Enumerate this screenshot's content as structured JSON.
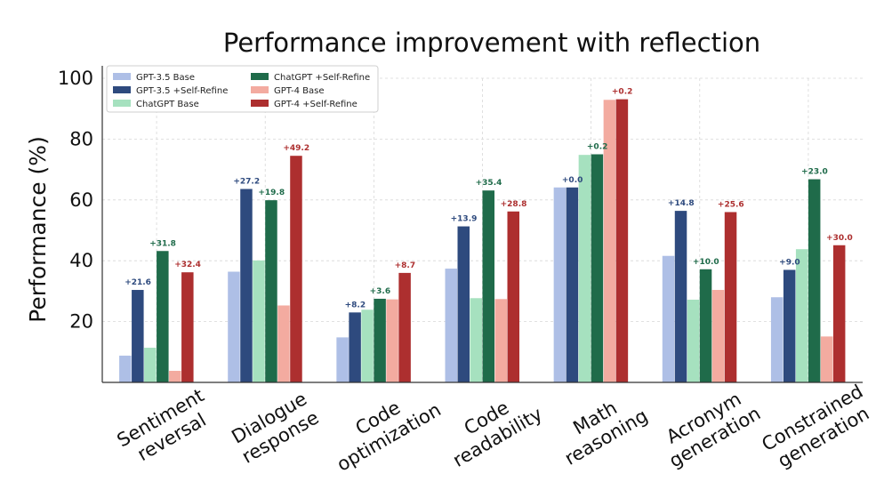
{
  "chart_data": {
    "type": "bar",
    "title": "Performance improvement with reflection",
    "xlabel": "",
    "ylabel": "Performance (%)",
    "ylim": [
      0,
      100
    ],
    "yticks": [
      20,
      40,
      60,
      80,
      100
    ],
    "grid": true,
    "legend_position": "top-left",
    "categories": [
      [
        "Sentiment",
        "reversal"
      ],
      [
        "Dialogue",
        "response"
      ],
      [
        "Code",
        "optimization"
      ],
      [
        "Code",
        "readability"
      ],
      [
        "Math",
        "reasoning"
      ],
      [
        "Acronym",
        "generation"
      ],
      [
        "Constrained",
        "generation"
      ]
    ],
    "series": [
      {
        "name": "GPT-3.5 Base",
        "color": "#aebfe6",
        "values": [
          8.8,
          36.4,
          14.8,
          37.4,
          64.1,
          41.6,
          28.0
        ]
      },
      {
        "name": "GPT-3.5 +Self-Refine",
        "color": "#2e4a7e",
        "values": [
          30.4,
          63.6,
          23.0,
          51.3,
          64.1,
          56.4,
          37.0
        ],
        "labels": [
          "+21.6",
          "+27.2",
          "+8.2",
          "+13.9",
          "+0.0",
          "+14.8",
          "+9.0"
        ],
        "label_color": "#2e4a7e"
      },
      {
        "name": "ChatGPT Base",
        "color": "#a6e1bf",
        "values": [
          11.4,
          40.1,
          23.9,
          27.7,
          74.8,
          27.2,
          43.8
        ]
      },
      {
        "name": "ChatGPT +Self-Refine",
        "color": "#1f6b4a",
        "values": [
          43.2,
          59.9,
          27.5,
          63.1,
          75.0,
          37.2,
          66.8
        ],
        "labels": [
          "+31.8",
          "+19.8",
          "+3.6",
          "+35.4",
          "+0.2",
          "+10.0",
          "+23.0"
        ],
        "label_color": "#1f6b4a"
      },
      {
        "name": "GPT-4 Base",
        "color": "#f3aba0",
        "values": [
          3.8,
          25.3,
          27.3,
          27.4,
          92.9,
          30.4,
          15.1
        ]
      },
      {
        "name": "GPT-4 +Self-Refine",
        "color": "#ad2f2f",
        "values": [
          36.2,
          74.5,
          36.0,
          56.2,
          93.1,
          56.0,
          45.1
        ],
        "labels": [
          "+32.4",
          "+49.2",
          "+8.7",
          "+28.8",
          "+0.2",
          "+25.6",
          "+30.0"
        ],
        "label_color": "#ad2f2f"
      }
    ]
  }
}
